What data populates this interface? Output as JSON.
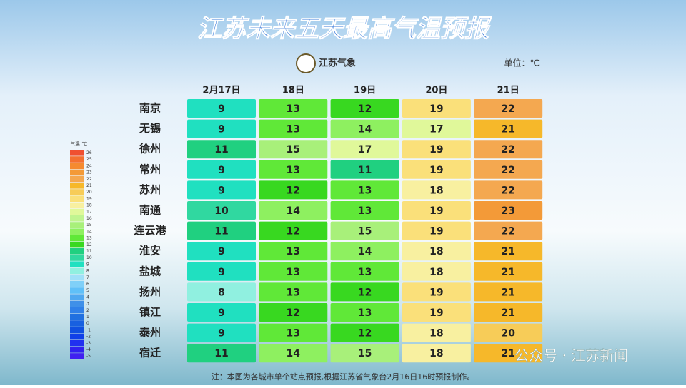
{
  "header": {
    "title": "江苏未来五天最高气温预报",
    "logo": "江苏气象",
    "unit": "单位：℃"
  },
  "table": {
    "columns": [
      "2月17日",
      "18日",
      "19日",
      "20日",
      "21日"
    ],
    "rows": [
      {
        "city": "南京",
        "values": [
          9,
          13,
          12,
          19,
          22
        ]
      },
      {
        "city": "无锡",
        "values": [
          9,
          13,
          14,
          17,
          21
        ]
      },
      {
        "city": "徐州",
        "values": [
          11,
          15,
          17,
          19,
          22
        ]
      },
      {
        "city": "常州",
        "values": [
          9,
          13,
          11,
          19,
          22
        ]
      },
      {
        "city": "苏州",
        "values": [
          9,
          12,
          13,
          18,
          22
        ]
      },
      {
        "city": "南通",
        "values": [
          10,
          14,
          13,
          19,
          23
        ]
      },
      {
        "city": "连云港",
        "values": [
          11,
          12,
          15,
          19,
          22
        ]
      },
      {
        "city": "淮安",
        "values": [
          9,
          13,
          14,
          18,
          21
        ]
      },
      {
        "city": "盐城",
        "values": [
          9,
          13,
          13,
          18,
          21
        ]
      },
      {
        "city": "扬州",
        "values": [
          8,
          13,
          12,
          19,
          21
        ]
      },
      {
        "city": "镇江",
        "values": [
          9,
          12,
          13,
          19,
          21
        ]
      },
      {
        "city": "泰州",
        "values": [
          9,
          13,
          12,
          18,
          20
        ]
      },
      {
        "city": "宿迁",
        "values": [
          11,
          14,
          15,
          18,
          21
        ]
      }
    ]
  },
  "legend": {
    "title": "气温 ℃",
    "items": [
      {
        "value": 26,
        "color": "#f05030"
      },
      {
        "value": 25,
        "color": "#f47030"
      },
      {
        "value": 24,
        "color": "#f58a30"
      },
      {
        "value": 23,
        "color": "#f39a38"
      },
      {
        "value": 22,
        "color": "#f4a850"
      },
      {
        "value": 21,
        "color": "#f6b82a"
      },
      {
        "value": 20,
        "color": "#f7cc58"
      },
      {
        "value": 19,
        "color": "#fae07a"
      },
      {
        "value": 18,
        "color": "#f8f0a0"
      },
      {
        "value": 17,
        "color": "#e0f89a"
      },
      {
        "value": 16,
        "color": "#c0f490"
      },
      {
        "value": 15,
        "color": "#a8f07a"
      },
      {
        "value": 14,
        "color": "#8ef060"
      },
      {
        "value": 13,
        "color": "#60e838"
      },
      {
        "value": 12,
        "color": "#38d820"
      },
      {
        "value": 11,
        "color": "#20d080"
      },
      {
        "value": 10,
        "color": "#30d8a0"
      },
      {
        "value": 9,
        "color": "#20e0c0"
      },
      {
        "value": 8,
        "color": "#90f0e0"
      },
      {
        "value": 7,
        "color": "#a0e0f8"
      },
      {
        "value": 6,
        "color": "#80d0f8"
      },
      {
        "value": 5,
        "color": "#60c0f8"
      },
      {
        "value": 4,
        "color": "#50a8f0"
      },
      {
        "value": 3,
        "color": "#4090e8"
      },
      {
        "value": 2,
        "color": "#3080e8"
      },
      {
        "value": 1,
        "color": "#2070e0"
      },
      {
        "value": 0,
        "color": "#1860e0"
      },
      {
        "value": -1,
        "color": "#1050e0"
      },
      {
        "value": -2,
        "color": "#1040e8"
      },
      {
        "value": -3,
        "color": "#2030f0"
      },
      {
        "value": -4,
        "color": "#3020f0"
      },
      {
        "value": -5,
        "color": "#4020f0"
      }
    ]
  },
  "footer": {
    "note": "注：本图为各城市单个站点预报,根据江苏省气象台2月16日16时预报制作。",
    "watermark": "公众号 · 江苏新闻"
  }
}
